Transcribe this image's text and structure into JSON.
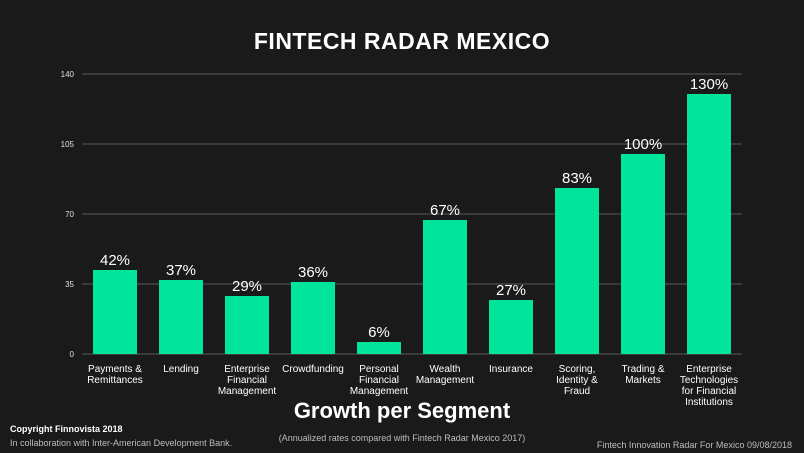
{
  "title": "FINTECH RADAR MEXICO",
  "subtitle": "Growth per Segment",
  "note": "(Annualized rates compared with Fintech Radar Mexico 2017)",
  "copyright": "Copyright Finnovista 2018",
  "collaboration": "In collaboration with Inter-American Development Bank.",
  "footer_right": "Fintech Innovation Radar For Mexico 09/08/2018",
  "colors": {
    "bar": "#00e59b",
    "background": "#1a1a1a",
    "grid": "#5a5a5a"
  },
  "chart_data": {
    "type": "bar",
    "categories": [
      [
        "Payments &",
        "Remittances"
      ],
      [
        "Lending"
      ],
      [
        "Enterprise",
        "Financial",
        "Management"
      ],
      [
        "Crowdfunding"
      ],
      [
        "Personal",
        "Financial",
        "Management"
      ],
      [
        "Wealth",
        "Management"
      ],
      [
        "Insurance"
      ],
      [
        "Scoring,",
        "Identity &",
        "Fraud"
      ],
      [
        "Trading &",
        "Markets"
      ],
      [
        "Enterprise",
        "Technologies",
        "for Financial",
        "Institutions"
      ]
    ],
    "values": [
      42,
      37,
      29,
      36,
      6,
      67,
      27,
      83,
      100,
      130
    ],
    "data_labels": [
      "42%",
      "37%",
      "29%",
      "36%",
      "6%",
      "67%",
      "27%",
      "83%",
      "100%",
      "130%"
    ],
    "yticks": [
      0,
      35,
      70,
      105,
      140
    ],
    "ylim": [
      0,
      140
    ],
    "grid": true,
    "xlabel": "Growth per Segment",
    "ylabel": ""
  }
}
